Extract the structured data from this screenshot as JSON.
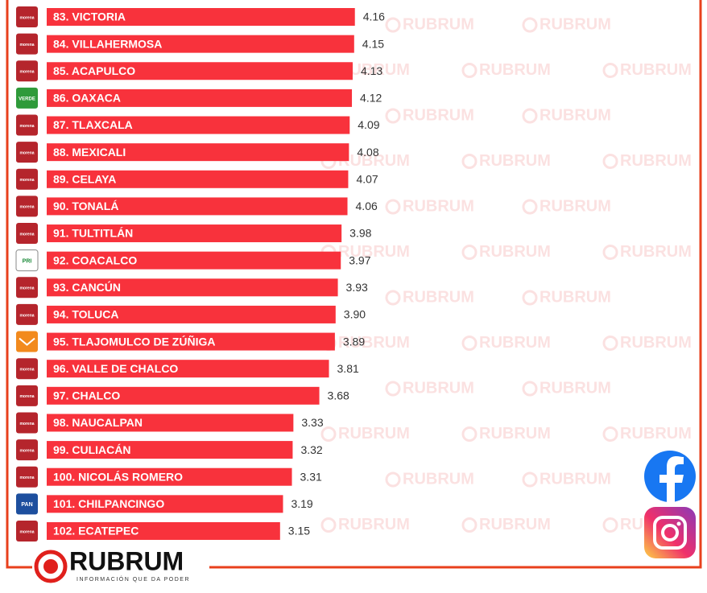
{
  "chart_data": {
    "type": "bar",
    "orientation": "horizontal",
    "color": "#f8323c",
    "categories": [
      "83. VICTORIA",
      "84. VILLAHERMOSA",
      "85. ACAPULCO",
      "86. OAXACA",
      "87. TLAXCALA",
      "88. MEXICALI",
      "89. CELAYA",
      "90. TONALÁ",
      "91. TULTITLÁN",
      "92. COACALCO",
      "93. CANCÚN",
      "94. TOLUCA",
      "95. TLAJOMULCO DE ZÚÑIGA",
      "96. VALLE DE CHALCO",
      "97. CHALCO",
      "98. NAUCALPAN",
      "99. CULIACÁN",
      "100. NICOLÁS ROMERO",
      "101. CHILPANCINGO",
      "102. ECATEPEC"
    ],
    "values": [
      4.16,
      4.15,
      4.13,
      4.12,
      4.09,
      4.08,
      4.07,
      4.06,
      3.98,
      3.97,
      3.93,
      3.9,
      3.89,
      3.81,
      3.68,
      3.33,
      3.32,
      3.31,
      3.19,
      3.15
    ],
    "value_labels": [
      "4.16",
      "4.15",
      "4.13",
      "4.12",
      "4.09",
      "4.08",
      "4.07",
      "4.06",
      "3.98",
      "3.97",
      "3.93",
      "3.90",
      "3.89",
      "3.81",
      "3.68",
      "3.33",
      "3.32",
      "3.31",
      "3.19",
      "3.15"
    ],
    "party_logos": [
      "morena",
      "morena",
      "morena",
      "VERDE",
      "morena",
      "morena",
      "morena",
      "morena",
      "morena",
      "PRI",
      "morena",
      "morena",
      null,
      "morena",
      "morena",
      "morena",
      "morena",
      "morena",
      "PAN",
      "morena"
    ]
  },
  "watermark": "RUBRUM",
  "brand": {
    "name": "RUBRUM",
    "tagline": "INFORMACIÓN QUE DA PODER"
  }
}
